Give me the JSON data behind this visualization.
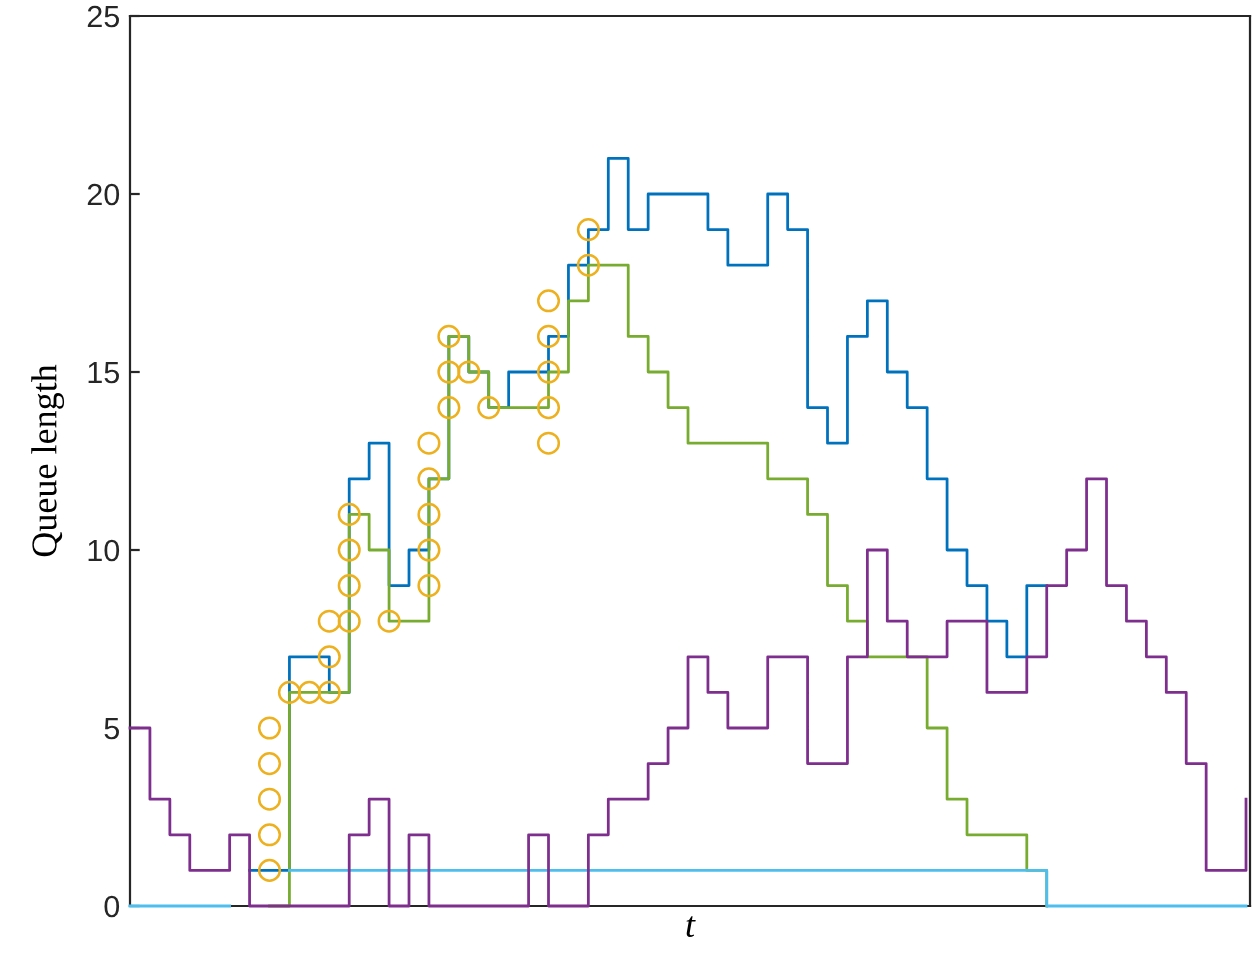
{
  "chart_data": {
    "type": "step",
    "xlabel": "t",
    "ylabel": "Queue length",
    "tick_labels": "y",
    "ylim": [
      0,
      25
    ],
    "yticks": [
      0,
      5,
      10,
      15,
      20,
      25
    ],
    "marker": "none",
    "categories": [
      null,
      null,
      null,
      null,
      null,
      null,
      null,
      null,
      null,
      null,
      null,
      null,
      null,
      null,
      null,
      null,
      null,
      null,
      null,
      null,
      null,
      null,
      null,
      null,
      null,
      null,
      null,
      null,
      null,
      null,
      null,
      null,
      null,
      null,
      null,
      null,
      null,
      null,
      null,
      null,
      null,
      null,
      null,
      null,
      null,
      null,
      null,
      null,
      null,
      null,
      null,
      null,
      null,
      null,
      null,
      null,
      null
    ],
    "series": [
      {
        "color": "#0072bd",
        "values": [
          null,
          null,
          null,
          null,
          null,
          null,
          1,
          1,
          7,
          7,
          6,
          12,
          13,
          9,
          10,
          12,
          16,
          15,
          14,
          15,
          15,
          16,
          18,
          19,
          21,
          19,
          20,
          20,
          20,
          19,
          18,
          18,
          20,
          19,
          14,
          13,
          16,
          17,
          15,
          14,
          12,
          10,
          9,
          8,
          7,
          9,
          9,
          null,
          null,
          null,
          null,
          null,
          null,
          null,
          null,
          null,
          null
        ]
      },
      {
        "color": "#77ac30",
        "values": [
          null,
          null,
          null,
          null,
          null,
          null,
          null,
          0,
          6,
          6,
          6,
          11,
          10,
          8,
          8,
          12,
          16,
          15,
          14,
          14,
          14,
          15,
          17,
          18,
          18,
          16,
          15,
          14,
          13,
          13,
          13,
          13,
          12,
          12,
          11,
          9,
          8,
          7,
          7,
          7,
          5,
          3,
          2,
          2,
          2,
          1,
          0,
          null,
          null,
          null,
          null,
          null,
          null,
          null,
          null,
          null,
          null
        ]
      },
      {
        "color": "#4dbeee",
        "values": [
          0,
          0,
          0,
          0,
          0,
          0,
          null,
          null,
          1,
          1,
          1,
          1,
          1,
          1,
          1,
          1,
          1,
          1,
          1,
          1,
          1,
          1,
          1,
          1,
          1,
          1,
          1,
          1,
          1,
          1,
          1,
          1,
          1,
          1,
          1,
          1,
          1,
          1,
          1,
          1,
          1,
          1,
          1,
          1,
          1,
          1,
          0,
          0,
          0,
          0,
          0,
          0,
          0,
          0,
          0,
          0,
          0
        ]
      },
      {
        "color": "#7e2f8e",
        "values": [
          5,
          3,
          2,
          1,
          1,
          2,
          0,
          0,
          0,
          0,
          0,
          2,
          3,
          0,
          2,
          0,
          0,
          0,
          0,
          0,
          2,
          0,
          0,
          2,
          3,
          3,
          4,
          5,
          7,
          6,
          5,
          5,
          7,
          7,
          4,
          4,
          7,
          10,
          8,
          7,
          7,
          8,
          8,
          6,
          6,
          7,
          9,
          10,
          12,
          9,
          8,
          7,
          6,
          4,
          1,
          1,
          3
        ]
      },
      {
        "type": "scatter",
        "marker": "circle",
        "color": "#edb120",
        "values": [
          null,
          null,
          null,
          null,
          null,
          null,
          null,
          1,
          6,
          6,
          6,
          8,
          null,
          8,
          null,
          9,
          14,
          15,
          14,
          null,
          null,
          13,
          null,
          18,
          null,
          null,
          null,
          null,
          null,
          null,
          null,
          null,
          null,
          null,
          null,
          null,
          null,
          null,
          null,
          null,
          null,
          null,
          null,
          null,
          null,
          null,
          null,
          null,
          null,
          null,
          null,
          null,
          null,
          null,
          null,
          null,
          null
        ]
      },
      {
        "type": "scatter",
        "marker": "circle",
        "color": "#edb120",
        "values": [
          null,
          null,
          null,
          null,
          null,
          null,
          null,
          2,
          null,
          null,
          7,
          9,
          null,
          null,
          null,
          10,
          15,
          null,
          null,
          null,
          null,
          14,
          null,
          19,
          null,
          null,
          null,
          null,
          null,
          null,
          null,
          null,
          null,
          null,
          null,
          null,
          null,
          null,
          null,
          null,
          null,
          null,
          null,
          null,
          null,
          null,
          null,
          null,
          null,
          null,
          null,
          null,
          null,
          null,
          null,
          null,
          null
        ]
      },
      {
        "type": "scatter",
        "marker": "circle",
        "color": "#edb120",
        "values": [
          null,
          null,
          null,
          null,
          null,
          null,
          null,
          3,
          null,
          null,
          8,
          10,
          null,
          null,
          null,
          11,
          16,
          null,
          null,
          null,
          null,
          15,
          null,
          null,
          null,
          null,
          null,
          null,
          null,
          null,
          null,
          null,
          null,
          null,
          null,
          null,
          null,
          null,
          null,
          null,
          null,
          null,
          null,
          null,
          null,
          null,
          null,
          null,
          null,
          null,
          null,
          null,
          null,
          null,
          null,
          null,
          null
        ]
      },
      {
        "type": "scatter",
        "marker": "circle",
        "color": "#edb120",
        "values": [
          null,
          null,
          null,
          null,
          null,
          null,
          null,
          4,
          null,
          null,
          null,
          11,
          null,
          null,
          null,
          12,
          null,
          null,
          null,
          null,
          null,
          16,
          null,
          null,
          null,
          null,
          null,
          null,
          null,
          null,
          null,
          null,
          null,
          null,
          null,
          null,
          null,
          null,
          null,
          null,
          null,
          null,
          null,
          null,
          null,
          null,
          null,
          null,
          null,
          null,
          null,
          null,
          null,
          null,
          null,
          null,
          null
        ]
      },
      {
        "type": "scatter",
        "marker": "circle",
        "color": "#edb120",
        "values": [
          null,
          null,
          null,
          null,
          null,
          null,
          null,
          5,
          null,
          null,
          null,
          null,
          null,
          null,
          null,
          13,
          null,
          null,
          null,
          null,
          null,
          17,
          null,
          null,
          null,
          null,
          null,
          null,
          null,
          null,
          null,
          null,
          null,
          null,
          null,
          null,
          null,
          null,
          null,
          null,
          null,
          null,
          null,
          null,
          null,
          null,
          null,
          null,
          null,
          null,
          null,
          null,
          null,
          null,
          null,
          null,
          null
        ]
      }
    ]
  }
}
